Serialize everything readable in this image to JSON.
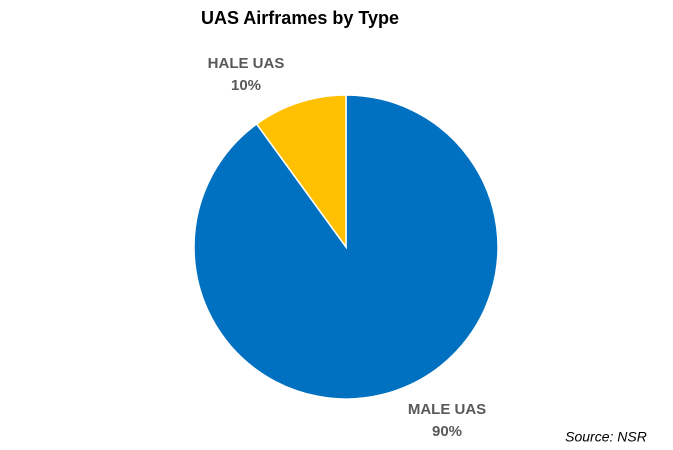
{
  "chart_data": {
    "type": "pie",
    "title": "UAS Airframes by Type",
    "categories": [
      "MALE UAS",
      "HALE UAS"
    ],
    "values": [
      90,
      10
    ],
    "value_labels": [
      "90%",
      "10%"
    ],
    "colors": [
      "#0070c0",
      "#ffc000"
    ],
    "source": "Source: NSR"
  }
}
